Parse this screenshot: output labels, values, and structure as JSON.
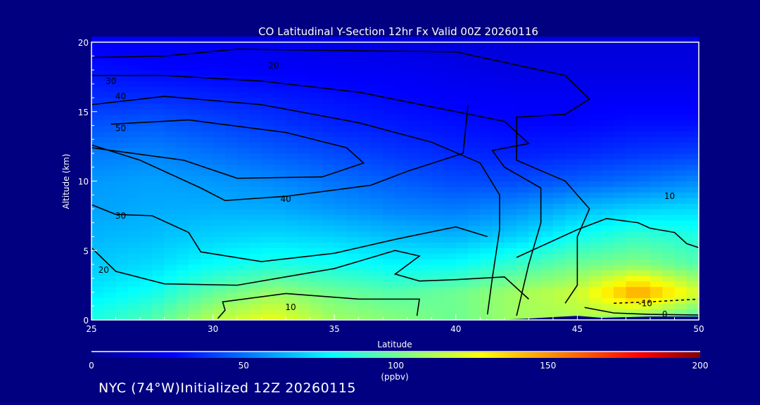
{
  "chart_data": {
    "type": "heatmap",
    "title": "CO Latitudinal Y-Section 12hr  Fx Valid 00Z 20260116",
    "xlabel": "Latitude",
    "ylabel": "Altitude (km)",
    "xlim": [
      25,
      50
    ],
    "ylim": [
      0,
      20
    ],
    "xticks": [
      25,
      30,
      35,
      40,
      45,
      50
    ],
    "yticks": [
      0,
      5,
      10,
      15,
      20
    ],
    "grid_lat": [
      25,
      27.5,
      30,
      32.5,
      35,
      37.5,
      40,
      42.5,
      45,
      47.5,
      50
    ],
    "grid_alt": [
      0,
      2,
      4,
      6,
      8,
      10,
      12,
      14,
      16,
      18,
      20
    ],
    "values": [
      [
        85,
        95,
        115,
        125,
        110,
        105,
        100,
        110,
        112,
        100,
        90
      ],
      [
        75,
        82,
        98,
        108,
        100,
        95,
        100,
        110,
        118,
        150,
        120
      ],
      [
        68,
        72,
        80,
        85,
        82,
        78,
        80,
        90,
        100,
        105,
        95
      ],
      [
        64,
        66,
        70,
        72,
        70,
        66,
        64,
        70,
        82,
        90,
        85
      ],
      [
        60,
        62,
        63,
        62,
        58,
        54,
        52,
        56,
        65,
        70,
        72
      ],
      [
        58,
        60,
        58,
        55,
        50,
        46,
        42,
        42,
        46,
        50,
        55
      ],
      [
        52,
        54,
        50,
        46,
        42,
        38,
        35,
        33,
        35,
        38,
        40
      ],
      [
        44,
        46,
        42,
        38,
        34,
        32,
        30,
        28,
        28,
        30,
        30
      ],
      [
        36,
        36,
        34,
        32,
        30,
        28,
        26,
        25,
        25,
        25,
        25
      ],
      [
        30,
        28,
        27,
        26,
        25,
        24,
        22,
        20,
        20,
        20,
        20
      ],
      [
        25,
        24,
        23,
        22,
        21,
        20,
        18,
        18,
        18,
        18,
        18
      ]
    ],
    "terrain": [
      [
        41.5,
        0
      ],
      [
        43,
        0.1
      ],
      [
        44,
        0.2
      ],
      [
        45,
        0.3
      ],
      [
        46,
        0.15
      ],
      [
        48,
        0.25
      ],
      [
        50,
        0.25
      ],
      [
        50,
        0
      ]
    ],
    "colorbar": {
      "min": 0,
      "max": 200,
      "ticks": [
        "0",
        "50",
        "100",
        "150",
        "200"
      ],
      "unit": "(ppbv)",
      "stops": [
        [
          0,
          "#000090"
        ],
        [
          27,
          "#0000ff"
        ],
        [
          79,
          "#00ffff"
        ],
        [
          128,
          "#ffff00"
        ],
        [
          180,
          "#ff0000"
        ],
        [
          200,
          "#800000"
        ]
      ]
    },
    "contours": [
      {
        "label": "20",
        "dashed": false,
        "label_at": [
          32.5,
          18.3
        ],
        "points": [
          [
            25,
            18.9
          ],
          [
            28,
            19
          ],
          [
            31,
            19.5
          ],
          [
            35,
            19.4
          ],
          [
            40,
            19.3
          ],
          [
            44.5,
            17.6
          ],
          [
            45.5,
            15.9
          ],
          [
            44.5,
            14.8
          ],
          [
            42.5,
            14.6
          ],
          [
            42.5,
            11.5
          ],
          [
            44.5,
            10
          ],
          [
            45.5,
            8
          ],
          [
            45,
            6
          ],
          [
            45,
            2.5
          ],
          [
            44.5,
            1.2
          ]
        ]
      },
      {
        "label": "30",
        "dashed": false,
        "label_at": [
          25.8,
          17.2
        ],
        "points": [
          [
            25,
            17.6
          ],
          [
            28,
            17.6
          ],
          [
            32,
            17.2
          ],
          [
            36,
            16.4
          ],
          [
            40,
            15
          ],
          [
            42,
            14.3
          ],
          [
            43,
            12.7
          ],
          [
            41.5,
            12.2
          ],
          [
            42,
            11
          ],
          [
            43.5,
            9.5
          ],
          [
            43.5,
            7
          ],
          [
            43,
            4
          ],
          [
            42.5,
            0.3
          ]
        ]
      },
      {
        "label": "40",
        "dashed": false,
        "label_at": [
          26.2,
          16.1
        ],
        "points": [
          [
            25,
            15.5
          ],
          [
            28,
            16.1
          ],
          [
            32,
            15.5
          ],
          [
            36,
            14.2
          ],
          [
            39,
            12.8
          ],
          [
            41,
            11.3
          ],
          [
            41.8,
            9
          ],
          [
            41.8,
            6.5
          ],
          [
            41.5,
            3
          ],
          [
            41.3,
            0.4
          ]
        ]
      },
      {
        "label": "50",
        "dashed": false,
        "label_at": [
          26.2,
          13.8
        ],
        "points": [
          [
            25.8,
            14.1
          ],
          [
            29,
            14.4
          ],
          [
            33,
            13.5
          ],
          [
            35.5,
            12.4
          ],
          [
            36.2,
            11.3
          ],
          [
            34.5,
            10.3
          ],
          [
            31,
            10.2
          ],
          [
            28.8,
            11.5
          ],
          [
            25,
            12.4
          ]
        ]
      },
      {
        "label": "40",
        "dashed": false,
        "label_at": [
          33,
          8.7
        ],
        "points": [
          [
            25,
            12.6
          ],
          [
            27,
            11.5
          ],
          [
            29.5,
            9.5
          ],
          [
            30.5,
            8.6
          ],
          [
            33,
            8.9
          ],
          [
            36.5,
            9.7
          ],
          [
            38,
            10.7
          ],
          [
            40.3,
            12
          ],
          [
            40.5,
            15.5
          ]
        ]
      },
      {
        "label": "30",
        "dashed": false,
        "label_at": [
          26.2,
          7.5
        ],
        "points": [
          [
            25,
            8.3
          ],
          [
            26,
            7.6
          ],
          [
            27.5,
            7.5
          ],
          [
            29,
            6.3
          ],
          [
            29.5,
            4.9
          ],
          [
            32,
            4.2
          ],
          [
            35,
            4.8
          ],
          [
            37.5,
            5.8
          ],
          [
            40,
            6.7
          ],
          [
            41.3,
            6
          ]
        ]
      },
      {
        "label": "20",
        "dashed": false,
        "label_at": [
          25.5,
          3.6
        ],
        "points": [
          [
            25,
            5.2
          ],
          [
            26,
            3.5
          ],
          [
            28,
            2.6
          ],
          [
            31,
            2.5
          ],
          [
            35,
            3.7
          ],
          [
            37.5,
            5
          ],
          [
            38.5,
            4.6
          ],
          [
            37.5,
            3.3
          ],
          [
            38.5,
            2.8
          ],
          [
            40,
            2.9
          ],
          [
            42,
            3.1
          ],
          [
            43,
            1.5
          ]
        ]
      },
      {
        "label": "10",
        "dashed": false,
        "label_at": [
          33.2,
          0.9
        ],
        "points": [
          [
            30.2,
            0.1
          ],
          [
            30.5,
            0.7
          ],
          [
            30.4,
            1.3
          ],
          [
            33,
            1.9
          ],
          [
            36,
            1.5
          ],
          [
            38.5,
            1.5
          ],
          [
            38.4,
            0.3
          ]
        ]
      },
      {
        "label": "10",
        "dashed": false,
        "label_at": [
          48.8,
          8.9
        ],
        "points": [
          [
            42.5,
            4.5
          ],
          [
            45,
            6.5
          ],
          [
            46.2,
            7.3
          ],
          [
            47.5,
            7
          ],
          [
            48,
            6.6
          ],
          [
            49,
            6.3
          ],
          [
            49.5,
            5.5
          ],
          [
            50,
            5.2
          ]
        ]
      },
      {
        "label": "-10",
        "dashed": true,
        "label_at": [
          47.8,
          1.2
        ],
        "points": [
          [
            46.5,
            1.2
          ],
          [
            48,
            1.3
          ],
          [
            50,
            1.5
          ]
        ]
      },
      {
        "label": "0",
        "dashed": false,
        "label_at": [
          48.6,
          0.4
        ],
        "points": [
          [
            45.3,
            0.9
          ],
          [
            46.5,
            0.5
          ],
          [
            48,
            0.4
          ],
          [
            50,
            0.35
          ]
        ]
      }
    ]
  },
  "footer": {
    "text": "NYC (74°W)Initialized 12Z 20260115"
  }
}
